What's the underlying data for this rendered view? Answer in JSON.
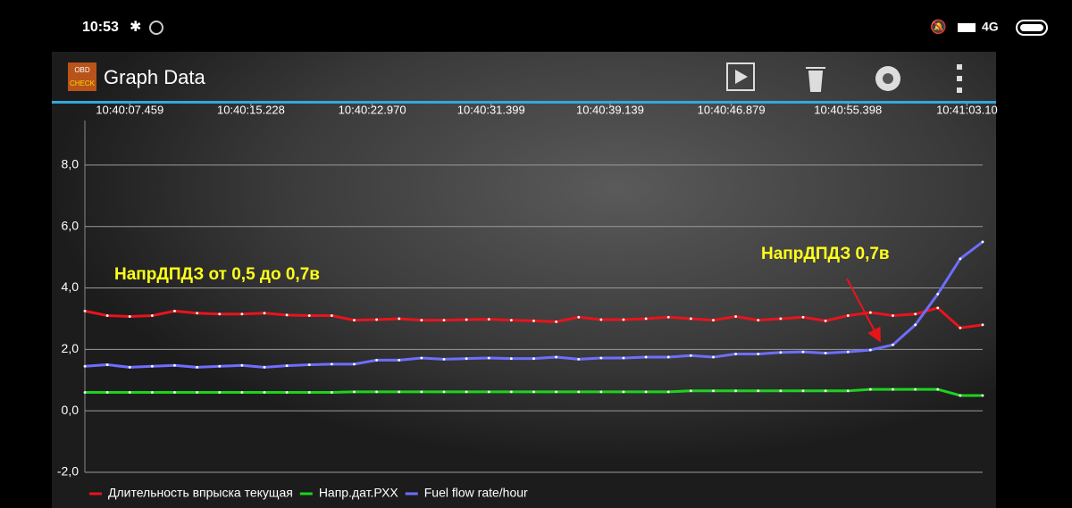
{
  "status_bar": {
    "time": "10:53",
    "network": "4G"
  },
  "app_bar": {
    "title": "Graph Data",
    "logo": [
      "OBD",
      "CHECK"
    ]
  },
  "chart_data": {
    "type": "line",
    "xlim": [
      0,
      40
    ],
    "xticks": [
      {
        "value": 2.0,
        "label": "10:40:07.459"
      },
      {
        "value": 7.4,
        "label": "10:40:15.228"
      },
      {
        "value": 12.8,
        "label": "10:40:22.970"
      },
      {
        "value": 18.1,
        "label": "10:40:31.399"
      },
      {
        "value": 23.4,
        "label": "10:40:39.139"
      },
      {
        "value": 28.8,
        "label": "10:40:46.879"
      },
      {
        "value": 34.0,
        "label": "10:40:55.398"
      },
      {
        "value": 39.3,
        "label": "10:41:03.10"
      }
    ],
    "ylim": [
      -2,
      9.45
    ],
    "yticks": [
      {
        "value": -2,
        "label": "-2,0"
      },
      {
        "value": 0,
        "label": "0,0"
      },
      {
        "value": 2,
        "label": "2,0"
      },
      {
        "value": 4,
        "label": "4,0"
      },
      {
        "value": 6,
        "label": "6,0"
      },
      {
        "value": 8,
        "label": "8,0"
      }
    ],
    "grid": true,
    "series": [
      {
        "name": "Длительность впрыска текущая",
        "color": "#e8141c",
        "values": [
          3.25,
          3.1,
          3.07,
          3.1,
          3.25,
          3.18,
          3.15,
          3.15,
          3.18,
          3.12,
          3.1,
          3.1,
          2.95,
          2.97,
          3.0,
          2.95,
          2.95,
          2.97,
          2.98,
          2.95,
          2.93,
          2.9,
          3.05,
          2.97,
          2.97,
          3.0,
          3.05,
          3.0,
          2.95,
          3.07,
          2.95,
          3.0,
          3.05,
          2.93,
          3.1,
          3.2,
          3.1,
          3.15,
          3.35,
          2.7,
          2.8
        ]
      },
      {
        "name": "Напр.дат.РХХ",
        "color": "#1ed21e",
        "values": [
          0.6,
          0.6,
          0.6,
          0.6,
          0.6,
          0.6,
          0.6,
          0.6,
          0.6,
          0.6,
          0.6,
          0.6,
          0.62,
          0.62,
          0.62,
          0.62,
          0.62,
          0.62,
          0.62,
          0.62,
          0.62,
          0.62,
          0.62,
          0.62,
          0.62,
          0.62,
          0.62,
          0.65,
          0.65,
          0.65,
          0.65,
          0.65,
          0.65,
          0.65,
          0.65,
          0.7,
          0.7,
          0.7,
          0.7,
          0.5,
          0.5
        ]
      },
      {
        "name": "Fuel flow rate/hour",
        "color": "#6e6eff",
        "values": [
          1.45,
          1.5,
          1.42,
          1.45,
          1.48,
          1.42,
          1.45,
          1.48,
          1.42,
          1.47,
          1.5,
          1.52,
          1.52,
          1.65,
          1.65,
          1.72,
          1.68,
          1.7,
          1.72,
          1.7,
          1.7,
          1.75,
          1.68,
          1.72,
          1.72,
          1.75,
          1.75,
          1.8,
          1.75,
          1.85,
          1.85,
          1.9,
          1.92,
          1.88,
          1.92,
          1.98,
          2.15,
          2.8,
          3.8,
          4.95,
          5.5
        ]
      }
    ],
    "annotations": [
      {
        "text": "НапрДПДЗ от 0,5 до 0,7в"
      },
      {
        "text": "НапрДПДЗ 0,7в"
      }
    ]
  }
}
